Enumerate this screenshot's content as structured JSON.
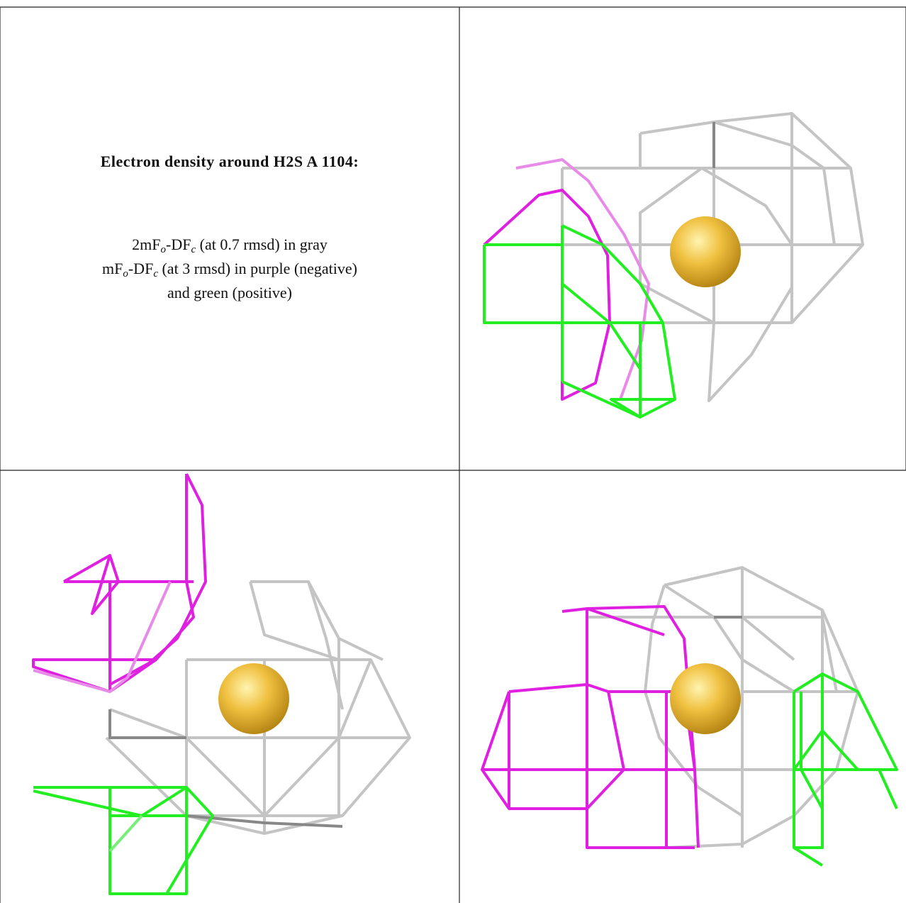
{
  "header": {
    "title": "Electron density around H2S A 1104:"
  },
  "legend": {
    "lines": [
      [
        "2mF",
        "o",
        "-DF",
        "c",
        " (at 0.7 rmsd) in gray"
      ],
      [
        "mF",
        "o",
        "-DF",
        "c",
        " (at 3 rmsd) in purple (negative)"
      ],
      [
        "and green (positive)"
      ]
    ]
  }
}
